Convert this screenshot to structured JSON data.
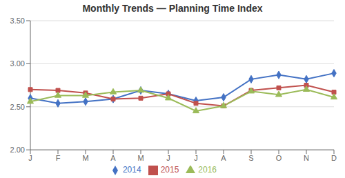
{
  "chart_data": {
    "type": "line",
    "title": "Monthly Trends — Planning Time Index",
    "categories": [
      "J",
      "F",
      "M",
      "A",
      "M",
      "J",
      "J",
      "A",
      "S",
      "O",
      "N",
      "D"
    ],
    "series": [
      {
        "name": "2014",
        "color": "#4472C4",
        "marker": "diamond",
        "values": [
          2.6,
          2.54,
          2.56,
          2.59,
          2.69,
          2.65,
          2.57,
          2.61,
          2.82,
          2.87,
          2.82,
          2.89
        ]
      },
      {
        "name": "2015",
        "color": "#C0504D",
        "marker": "square",
        "values": [
          2.7,
          2.69,
          2.66,
          2.59,
          2.6,
          2.65,
          2.54,
          2.51,
          2.69,
          2.72,
          2.75,
          2.67
        ]
      },
      {
        "name": "2016",
        "color": "#9BBB59",
        "marker": "triangle",
        "values": [
          2.56,
          2.63,
          2.63,
          2.67,
          2.69,
          2.6,
          2.45,
          2.51,
          2.68,
          2.64,
          2.7,
          2.61
        ]
      }
    ],
    "ylim": [
      2.0,
      3.5
    ],
    "yticks": [
      {
        "value": 2.0,
        "label": "2.00"
      },
      {
        "value": 2.5,
        "label": "2.50"
      },
      {
        "value": 3.0,
        "label": "3.00"
      },
      {
        "value": 3.5,
        "label": "3.50"
      }
    ],
    "grid": true,
    "legend": "bottom"
  }
}
